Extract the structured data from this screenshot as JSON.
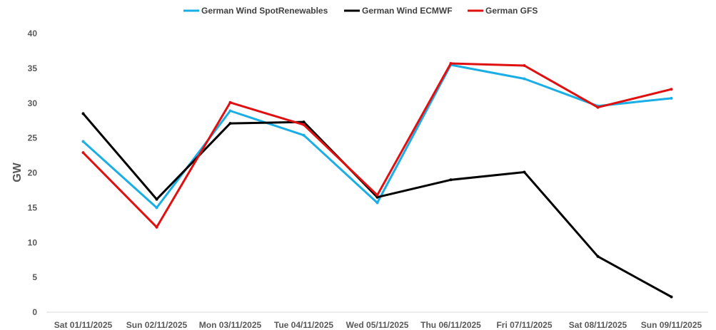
{
  "chart_data": {
    "type": "line",
    "title": "",
    "xlabel": "",
    "ylabel": "GW",
    "ylim": [
      0,
      40
    ],
    "yticks": [
      0,
      5,
      10,
      15,
      20,
      25,
      30,
      35,
      40
    ],
    "grid": false,
    "legend_position": "top",
    "categories": [
      "Sat 01/11/2025",
      "Sun 02/11/2025",
      "Mon 03/11/2025",
      "Tue 04/11/2025",
      "Wed 05/11/2025",
      "Thu 06/11/2025",
      "Fri 07/11/2025",
      "Sat 08/11/2025",
      "Sun 09/11/2025"
    ],
    "series": [
      {
        "name": "German Wind SpotRenewables",
        "color": "#1aaee6",
        "values": [
          24.5,
          15.0,
          28.9,
          25.4,
          15.7,
          35.5,
          33.5,
          29.6,
          30.7
        ]
      },
      {
        "name": "German Wind ECMWF",
        "color": "#000000",
        "values": [
          28.5,
          16.2,
          27.1,
          27.3,
          16.5,
          19.0,
          20.1,
          8.0,
          2.2
        ]
      },
      {
        "name": "German GFS",
        "color": "#e01010",
        "values": [
          22.9,
          12.2,
          30.1,
          26.9,
          16.8,
          35.7,
          35.4,
          29.4,
          32.0
        ]
      }
    ]
  }
}
